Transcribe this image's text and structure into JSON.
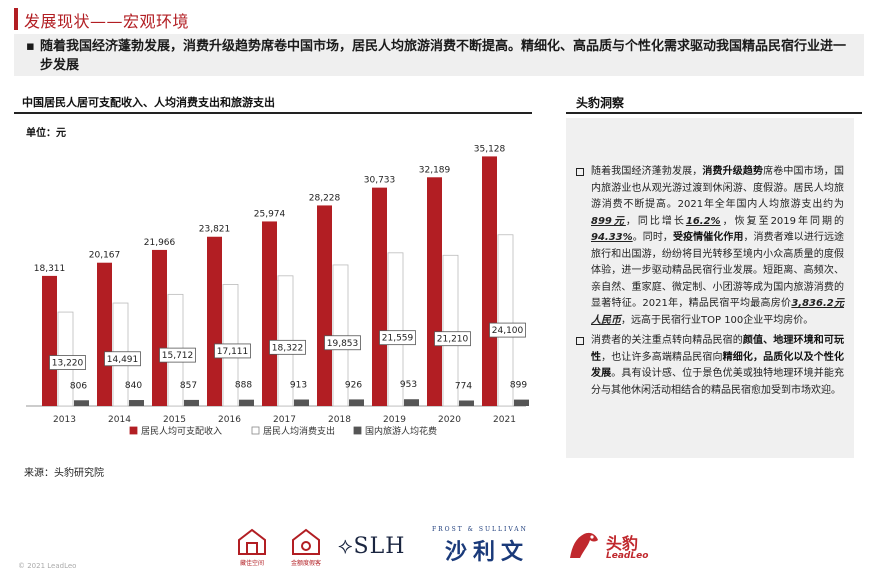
{
  "header": {
    "title": "发展现状——宏观环境",
    "intro_bullet": "▪",
    "intro": "随着我国经济蓬勃发展，消费升级趋势席卷中国市场，居民人均旅游消费不断提高。精细化、高品质与个性化需求驱动我国精品民宿行业进一步发展"
  },
  "chart_section": {
    "title": "中国居民人居可支配收入、人均消费支出和旅游支出",
    "unit": "单位：元",
    "source": "来源：头豹研究院"
  },
  "chart_data": {
    "type": "bar",
    "categories": [
      "2013",
      "2014",
      "2015",
      "2016",
      "2017",
      "2018",
      "2019",
      "2020",
      "2021"
    ],
    "series": [
      {
        "name": "居民人均可支配收入",
        "values": [
          18311,
          20167,
          21966,
          23821,
          25974,
          28228,
          30733,
          32189,
          35128
        ],
        "labels": [
          "18,311",
          "20,167",
          "21,966",
          "23,821",
          "25,974",
          "28,228",
          "30,733",
          "32,189",
          "35,128"
        ],
        "color": "#b21e23"
      },
      {
        "name": "居民人均消费支出",
        "values": [
          13220,
          14491,
          15712,
          17111,
          18322,
          19853,
          21559,
          21210,
          24100
        ],
        "labels": [
          "13,220",
          "14,491",
          "15,712",
          "17,111",
          "18,322",
          "19,853",
          "21,559",
          "21,210",
          "24,100"
        ],
        "color": "#ffffff"
      },
      {
        "name": "国内旅游人均花费",
        "values": [
          806,
          840,
          857,
          888,
          913,
          926,
          953,
          774,
          899
        ],
        "labels": [
          "806",
          "840",
          "857",
          "888",
          "913",
          "926",
          "953",
          "774",
          "899"
        ],
        "color": "#555555"
      }
    ],
    "ylim": [
      0,
      38000
    ],
    "legend": "bottom",
    "grid": false
  },
  "insight": {
    "title": "头豹洞察",
    "p1": {
      "t1": "随着我国经济蓬勃发展，",
      "b1": "消费升级趋势",
      "t2": "席卷中国市场，国内旅游业也从观光游过渡到休闲游、度假游。居民人均旅游消费不断提高。2021年全年国内人均旅游支出约为",
      "u1": "899元",
      "t3": "，同比增长",
      "u2": "16.2%",
      "t4": "，恢复至2019年同期的",
      "u3": "94.33%",
      "t5": "。同时，",
      "b2": "受疫情催化作用",
      "t6": "，消费者难以进行远途旅行和出国游，纷纷将目光转移至境内小众高质量的度假体验，进一步驱动精品民宿行业发展。短距离、高频次、亲自然、重家庭、微定制、小团游等成为国内旅游消费的显著特征。2021年，精品民宿平均最高房价",
      "u4": "3,836.2元人民币",
      "t7": "，远高于民宿行业TOP 100企业平均房价。"
    },
    "p2": {
      "t1": "消费者的关注重点转向精品民宿的",
      "b1": "颜值、地理环境和可玩性",
      "t2": "，也让许多高端精品民宿向",
      "b2": "精细化，品质化以及个性化发展",
      "t3": "。具有设计感、位于景色优美或独特地理环境并能充分与其他休闲活动相结合的精品民宿愈加受到市场欢迎。"
    }
  },
  "footer": {
    "logo1_caption": "藏佳空间",
    "logo2_caption": "金额度假客",
    "slh": "⟡SLH",
    "frost_en": "FROST & SULLIVAN",
    "frost_cn": "沙利文",
    "leadleo_cn": "头豹",
    "leadleo_en": "LeadLeo",
    "copyright": "© 2021 LeadLeo"
  },
  "colors": {
    "accent": "#b21e23",
    "navy": "#1a3a7a"
  }
}
